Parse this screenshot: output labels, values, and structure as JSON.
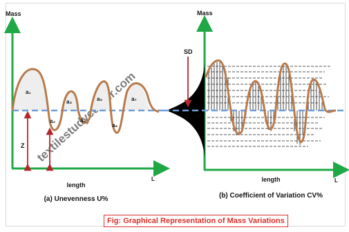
{
  "left_panel": {
    "y_axis_label": "Mass",
    "x_axis_label": "length",
    "x_axis_end": "L",
    "caption": "(a) Unevenness U%",
    "area_labels": [
      "a₁",
      "a₂",
      "a₃",
      "a₄",
      "a₅",
      "a₆",
      "a₇"
    ],
    "dim_label": "Z"
  },
  "right_panel": {
    "y_axis_label": "Mass",
    "x_axis_label": "length",
    "x_axis_end": "L",
    "caption": "(b) Coefficient of Variation CV%",
    "sd_label": "SD"
  },
  "watermark": "textilestudycenter.com",
  "figure_title": "Fig: Graphical Representation of Mass Variations",
  "colors": {
    "axis": "#1fa845",
    "curve": "#b87a4b",
    "mean": "#6f9fd8",
    "arrow": "#b3262a",
    "title_border": "#d9312b"
  }
}
